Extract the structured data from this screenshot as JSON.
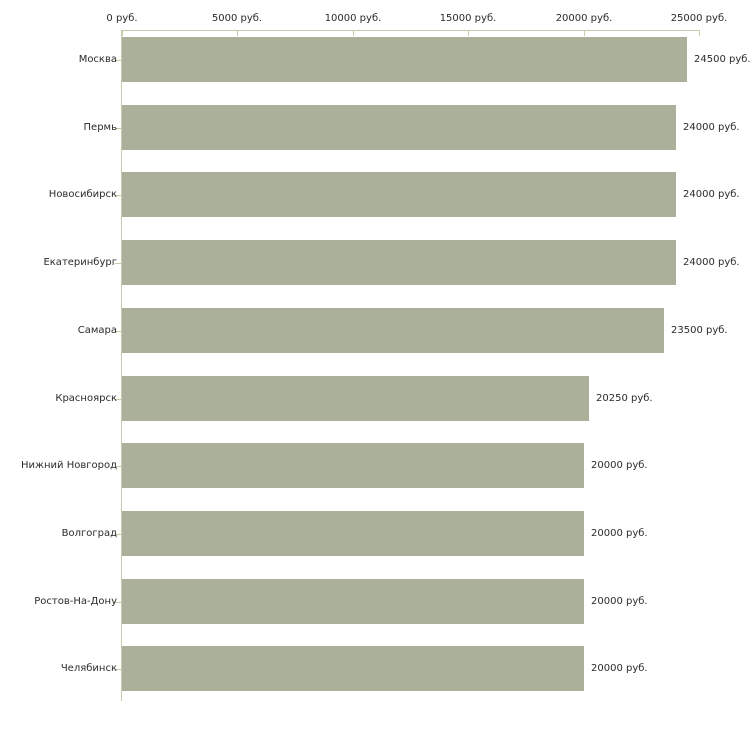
{
  "chart_data": {
    "type": "bar",
    "orientation": "horizontal",
    "title": "",
    "xlabel": "",
    "ylabel": "",
    "currency_suffix": "руб.",
    "categories": [
      "Москва",
      "Пермь",
      "Новосибирск",
      "Екатеринбург",
      "Самара",
      "Красноярск",
      "Нижний Новгород",
      "Волгоград",
      "Ростов-На-Дону",
      "Челябинск"
    ],
    "values": [
      24500,
      24000,
      24000,
      24000,
      23500,
      20250,
      20000,
      20000,
      20000,
      20000
    ],
    "value_labels": [
      "24500 руб.",
      "24000 руб.",
      "24000 руб.",
      "24000 руб.",
      "23500 руб.",
      "20250 руб.",
      "20000 руб.",
      "20000 руб.",
      "20000 руб.",
      "20000 руб."
    ],
    "x_ticks": [
      0,
      5000,
      10000,
      15000,
      20000,
      25000
    ],
    "x_tick_labels": [
      "0 руб.",
      "5000 руб.",
      "10000 руб.",
      "15000 руб.",
      "20000 руб.",
      "25000 руб."
    ],
    "xlim": [
      0,
      25000
    ],
    "grid": false,
    "legend": false,
    "axis_position": "top",
    "bar_color": "#aab099",
    "axis_color": "#c9c9ab",
    "text_color": "#2b2b2b"
  }
}
